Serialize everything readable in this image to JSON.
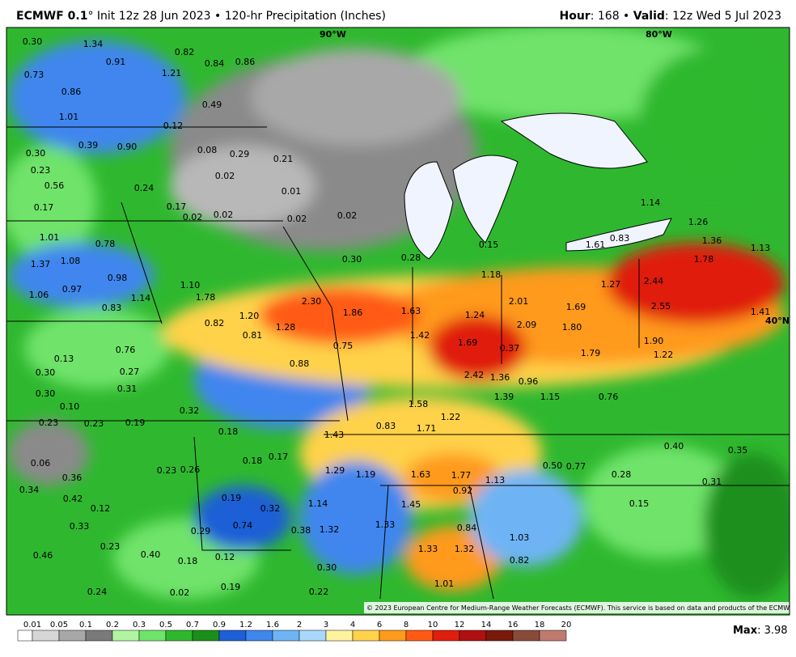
{
  "header": {
    "title_bold": "ECMWF 0.1",
    "title_rest": "° Init 12z 28 Jun 2023 • 120-hr Precipitation (Inches)",
    "hour_label": "Hour",
    "hour_rest": ": 168 • ",
    "valid_label": "Valid",
    "valid_rest": ": 12z Wed 5 Jul 2023"
  },
  "map": {
    "graticule": [
      "90°W",
      "80°W",
      "40°N"
    ],
    "copyright": "© 2023 European Centre for Medium-Range Weather Forecasts (ECMWF). This service is based on data and products of the ECMWF.",
    "labels": [
      "0.30",
      "1.34",
      "0.91",
      "0.82",
      "0.73",
      "1.21",
      "0.84",
      "0.86",
      "0.86",
      "0.49",
      "1.01",
      "0.12",
      "0.39",
      "0.90",
      "0.30",
      "0.08",
      "0.29",
      "0.21",
      "0.23",
      "0.56",
      "0.24",
      "0.02",
      "0.01",
      "0.17",
      "0.17",
      "0.02",
      "0.02",
      "0.02",
      "0.02",
      "1.01",
      "0.78",
      "1.37",
      "1.08",
      "0.98",
      "1.10",
      "1.78",
      "1.06",
      "0.97",
      "0.83",
      "1.14",
      "1.20",
      "2.30",
      "1.86",
      "1.63",
      "1.24",
      "1.42",
      "1.69",
      "2.09",
      "1.80",
      "1.69",
      "1.27",
      "2.44",
      "2.55",
      "1.18",
      "2.01",
      "0.30",
      "0.28",
      "0.15",
      "0.83",
      "1.61",
      "1.36",
      "1.13",
      "1.78",
      "1.26",
      "1.14",
      "1.41",
      "1.90",
      "1.22",
      "1.79",
      "0.37",
      "1.36",
      "0.96",
      "1.39",
      "1.15",
      "0.76",
      "2.42",
      "1.58",
      "1.22",
      "1.71",
      "0.83",
      "1.43",
      "0.88",
      "0.75",
      "1.28",
      "0.81",
      "0.82",
      "0.76",
      "0.27",
      "0.13",
      "0.30",
      "0.31",
      "0.30",
      "0.10",
      "0.23",
      "0.23",
      "0.19",
      "0.32",
      "0.18",
      "0.18",
      "0.17",
      "0.06",
      "0.36",
      "0.23",
      "0.26",
      "1.29",
      "1.19",
      "1.63",
      "1.77",
      "1.13",
      "0.92",
      "0.50",
      "0.77",
      "0.28",
      "0.40",
      "0.35",
      "0.31",
      "0.34",
      "0.42",
      "0.12",
      "0.19",
      "0.32",
      "1.14",
      "1.45",
      "1.33",
      "1.32",
      "0.38",
      "0.74",
      "0.29",
      "0.84",
      "1.03",
      "0.15",
      "1.33",
      "1.32",
      "0.82",
      "0.30",
      "1.01",
      "0.02",
      "0.19",
      "0.22",
      "0.24",
      "0.40",
      "0.23",
      "0.33",
      "0.12",
      "0.18",
      "0.46"
    ]
  },
  "colorbar": {
    "levels": [
      "0.01",
      "0.05",
      "0.1",
      "0.2",
      "0.3",
      "0.5",
      "0.7",
      "0.9",
      "1.2",
      "1.6",
      "2",
      "3",
      "4",
      "6",
      "8",
      "10",
      "12",
      "14",
      "16",
      "18",
      "20"
    ],
    "colors": [
      "#ffffff",
      "#d6d6d6",
      "#a8a8a8",
      "#7a7a7a",
      "#b2f5a0",
      "#6fe36a",
      "#2fb82f",
      "#1a8f1a",
      "#1e5fd6",
      "#3f86ee",
      "#6eb4f4",
      "#a8d8fb",
      "#fff3a0",
      "#ffd24a",
      "#ff9a1a",
      "#ff5a14",
      "#e01e0e",
      "#b01010",
      "#7a1a0a",
      "#8a4a3a",
      "#c07a70"
    ],
    "max_label": "Max",
    "max_rest": ": 3.98"
  }
}
